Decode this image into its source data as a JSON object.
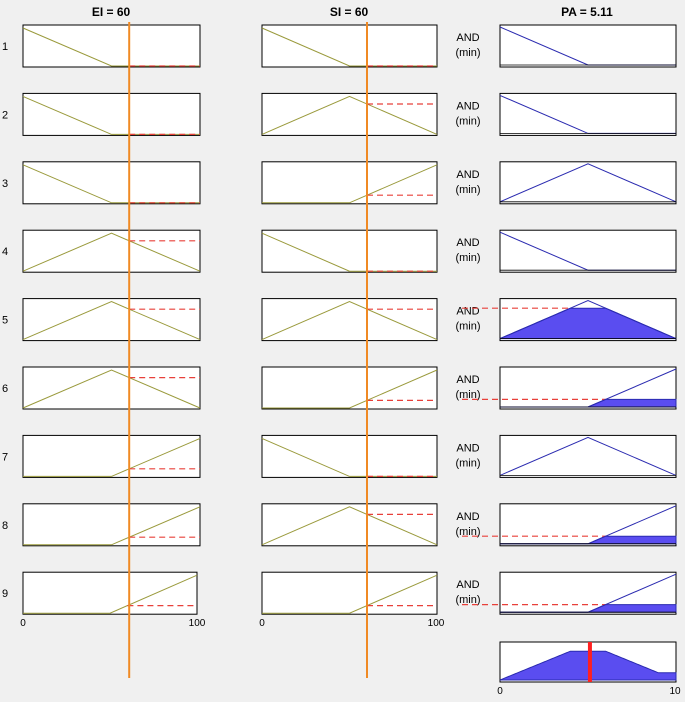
{
  "inputs": [
    {
      "name": "EI",
      "header": "EI = 60",
      "range": [
        0,
        100
      ],
      "value": 60,
      "axis_labels": [
        "0",
        "100"
      ]
    },
    {
      "name": "SI",
      "header": "SI = 60",
      "range": [
        0,
        100
      ],
      "value": 60,
      "axis_labels": [
        "0",
        "100"
      ]
    }
  ],
  "output": {
    "name": "PA",
    "header": "PA = 5.11",
    "range": [
      0,
      10
    ],
    "value": 5.11,
    "axis_labels": [
      "0",
      "10"
    ]
  },
  "rules": [
    {
      "number": "1",
      "ei_mf": "low",
      "si_mf": "low",
      "pa_mf": "low",
      "op_label": "AND",
      "method_label": "(min)",
      "firing": 0.0
    },
    {
      "number": "2",
      "ei_mf": "low",
      "si_mf": "medium",
      "pa_mf": "low",
      "op_label": "AND",
      "method_label": "(min)",
      "firing": 0.0
    },
    {
      "number": "3",
      "ei_mf": "low",
      "si_mf": "high",
      "pa_mf": "medium",
      "op_label": "AND",
      "method_label": "(min)",
      "firing": 0.0
    },
    {
      "number": "4",
      "ei_mf": "medium",
      "si_mf": "low",
      "pa_mf": "low",
      "op_label": "AND",
      "method_label": "(min)",
      "firing": 0.0
    },
    {
      "number": "5",
      "ei_mf": "medium",
      "si_mf": "medium",
      "pa_mf": "medium",
      "op_label": "AND",
      "method_label": "(min)",
      "firing": 0.8
    },
    {
      "number": "6",
      "ei_mf": "medium",
      "si_mf": "high",
      "pa_mf": "high",
      "op_label": "AND",
      "method_label": "(min)",
      "firing": 0.2
    },
    {
      "number": "7",
      "ei_mf": "high",
      "si_mf": "low",
      "pa_mf": "medium",
      "op_label": "AND",
      "method_label": "(min)",
      "firing": 0.0
    },
    {
      "number": "8",
      "ei_mf": "high",
      "si_mf": "medium",
      "pa_mf": "high",
      "op_label": "AND",
      "method_label": "(min)",
      "firing": 0.2
    },
    {
      "number": "9",
      "ei_mf": "high",
      "si_mf": "high",
      "pa_mf": "high",
      "op_label": "AND",
      "method_label": "(min)",
      "firing": 0.2
    }
  ],
  "colors": {
    "background": "#f0f0f0",
    "plot_bg": "#ffffff",
    "input_mf": "#9a9a3c",
    "output_mf": "#2b2bb0",
    "fill": "#5a4df0",
    "level": "#e8403a",
    "marker": "#f08a24",
    "result": "#ff2020"
  }
}
